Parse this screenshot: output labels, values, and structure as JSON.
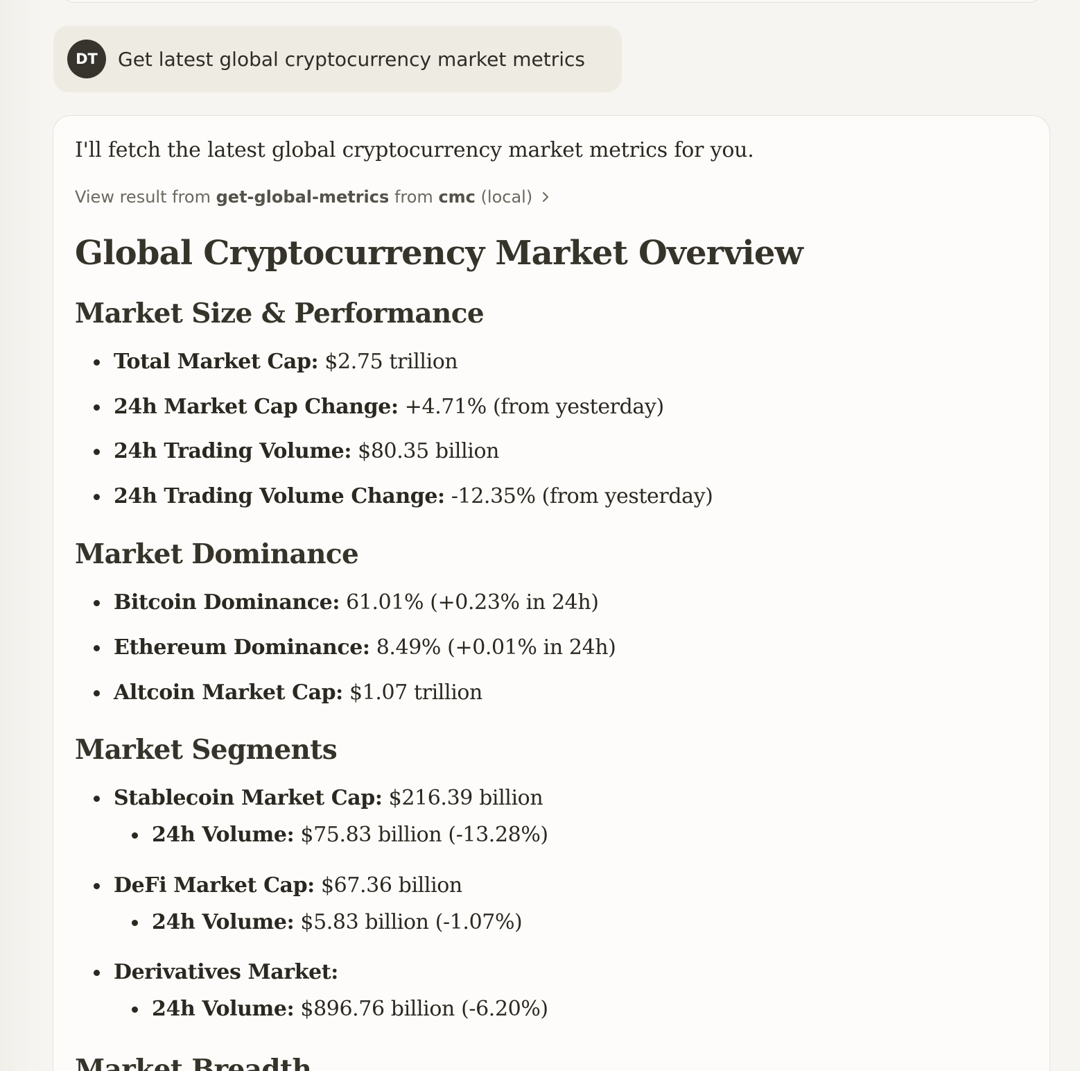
{
  "user_message": {
    "avatar_initials": "DT",
    "text": "Get latest global cryptocurrency market metrics"
  },
  "assistant": {
    "intro": "I'll fetch the latest global cryptocurrency market metrics for you.",
    "tool_result": {
      "prefix": "View result from",
      "tool_name": "get-global-metrics",
      "middle": "from",
      "server": "cmc",
      "suffix": "(local)",
      "icon": "chevron-right-icon"
    },
    "title": "Global Cryptocurrency Market Overview",
    "sections": [
      {
        "heading": "Market Size & Performance",
        "items": [
          {
            "label": "Total Market Cap:",
            "value": " $2.75 trillion"
          },
          {
            "label": "24h Market Cap Change:",
            "value": " +4.71% (from yesterday)"
          },
          {
            "label": "24h Trading Volume:",
            "value": " $80.35 billion"
          },
          {
            "label": "24h Trading Volume Change:",
            "value": " -12.35% (from yesterday)"
          }
        ]
      },
      {
        "heading": "Market Dominance",
        "items": [
          {
            "label": "Bitcoin Dominance:",
            "value": " 61.01% (+0.23% in 24h)"
          },
          {
            "label": "Ethereum Dominance:",
            "value": " 8.49% (+0.01% in 24h)"
          },
          {
            "label": "Altcoin Market Cap:",
            "value": " $1.07 trillion"
          }
        ]
      },
      {
        "heading": "Market Segments",
        "items": [
          {
            "label": "Stablecoin Market Cap:",
            "value": " $216.39 billion",
            "sub": {
              "label": "24h Volume:",
              "value": " $75.83 billion (-13.28%)"
            }
          },
          {
            "label": "DeFi Market Cap:",
            "value": " $67.36 billion",
            "sub": {
              "label": "24h Volume:",
              "value": " $5.83 billion (-1.07%)"
            }
          },
          {
            "label": "Derivatives Market:",
            "value": "",
            "sub": {
              "label": "24h Volume:",
              "value": " $896.76 billion (-6.20%)"
            }
          }
        ]
      },
      {
        "heading": "Market Breadth"
      }
    ]
  }
}
